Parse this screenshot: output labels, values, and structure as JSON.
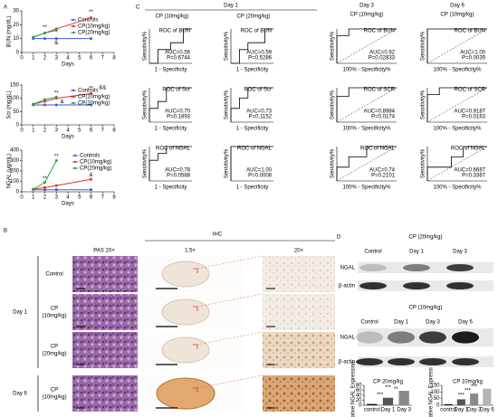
{
  "panel_labels": [
    "A",
    "B",
    "C",
    "D"
  ],
  "roc_headers": [
    "Day 1",
    "CP (10mg/kg)",
    "CP (20mg/kg)",
    "Day 3",
    "CP (10mg/kg)",
    "Day 6",
    "CP (10mg/kg)"
  ],
  "histology": {
    "headers": [
      "PAS 20×",
      "IHC",
      "1.5×",
      "20×"
    ],
    "groups": [
      {
        "label": "Day 1",
        "rows": [
          [
            "Control"
          ],
          [
            "CP",
            "(10mg/kg)"
          ],
          [
            "CP",
            "(20mg/kg)"
          ]
        ]
      },
      {
        "label": "Day 6",
        "rows": [
          [
            "CP",
            "(10mg/kg)"
          ]
        ]
      }
    ]
  },
  "blots": [
    {
      "title": "CP (20mg/kg)",
      "lanes": [
        "Control",
        "Day 1",
        "Day 3"
      ],
      "bands": [
        "NGAL",
        "β-actin"
      ]
    },
    {
      "title": "CP (10mg/kg)",
      "lanes": [
        "Control",
        "Day 1",
        "Day 3",
        "Day 6"
      ],
      "bands": [
        "NGAL",
        "β-actin"
      ]
    }
  ],
  "chart_data": [
    {
      "type": "line",
      "ylabel": "BUN (mg/dL)",
      "xlabel": "Days",
      "x": [
        1,
        2,
        3,
        6
      ],
      "xlim": [
        0,
        8
      ],
      "xticks": [
        0,
        1,
        2,
        3,
        4,
        5,
        6,
        7,
        8
      ],
      "ylim": [
        0,
        30
      ],
      "yticks": [
        0,
        10,
        20,
        30
      ],
      "legend": "right",
      "series": [
        {
          "name": "Controls",
          "color": "#3b5bdb",
          "values": [
            10,
            10,
            10,
            10
          ]
        },
        {
          "name": "CP(10mg/kg)",
          "color": "#e03131",
          "values": [
            11,
            14,
            17,
            25
          ]
        },
        {
          "name": "CP(20mg/kg)",
          "color": "#2f9e44",
          "values": [
            11,
            14,
            16,
            null
          ]
        }
      ],
      "annotations": [
        {
          "text": "**",
          "x": 2,
          "y": 18,
          "color": "#2f9e44"
        },
        {
          "text": "&",
          "x": 3,
          "y": 7,
          "color": "#000000"
        },
        {
          "text": "**",
          "x": 6,
          "y": 29,
          "color": "#e03131"
        }
      ]
    },
    {
      "type": "line",
      "ylabel": "Scr (mg/dL)",
      "xlabel": "Days",
      "x": [
        1,
        2,
        3,
        6
      ],
      "xlim": [
        0,
        8
      ],
      "xticks": [
        0,
        1,
        2,
        3,
        4,
        5,
        6,
        7,
        8
      ],
      "ylim": [
        0,
        150
      ],
      "yticks": [
        0,
        50,
        100,
        150
      ],
      "legend": "right",
      "series": [
        {
          "name": "Controls",
          "color": "#3b5bdb",
          "values": [
            75,
            75,
            75,
            75
          ]
        },
        {
          "name": "CP(10mg/kg)",
          "color": "#e03131",
          "values": [
            78,
            88,
            100,
            118
          ]
        },
        {
          "name": "CP(20mg/kg)",
          "color": "#2f9e44",
          "values": [
            78,
            95,
            105,
            null
          ]
        }
      ],
      "annotations": [
        {
          "text": "**",
          "x": 3,
          "y": 120,
          "color": "#2f9e44"
        },
        {
          "text": "&",
          "x": 3.5,
          "y": 88,
          "color": "#000000"
        },
        {
          "text": "**",
          "x": 6,
          "y": 137,
          "color": "#e03131"
        },
        {
          "text": "&&",
          "x": 7,
          "y": 140,
          "color": "#000000"
        }
      ]
    },
    {
      "type": "line",
      "ylabel": "NGAL (μg/mL)",
      "xlabel": "Days",
      "x": [
        1,
        2,
        3,
        6
      ],
      "xlim": [
        0,
        8
      ],
      "xticks": [
        0,
        1,
        2,
        3,
        4,
        5,
        6,
        7,
        8
      ],
      "ylim": [
        0,
        400
      ],
      "yticks": [
        0,
        100,
        200,
        300,
        400
      ],
      "legend": "right",
      "series": [
        {
          "name": "Controls",
          "color": "#3b5bdb",
          "values": [
            20,
            20,
            20,
            20
          ]
        },
        {
          "name": "CP(10mg/kg)",
          "color": "#e03131",
          "values": [
            25,
            40,
            60,
            120
          ]
        },
        {
          "name": "CP(20mg/kg)",
          "color": "#2f9e44",
          "values": [
            25,
            90,
            300,
            null
          ]
        }
      ],
      "annotations": [
        {
          "text": "**",
          "x": 2,
          "y": 125,
          "color": "#2f9e44"
        },
        {
          "text": "**",
          "x": 3,
          "y": 340,
          "color": "#2f9e44"
        },
        {
          "text": "&",
          "x": 6,
          "y": 160,
          "color": "#000000"
        }
      ]
    },
    {
      "type": "roc",
      "title": "ROC of BUN",
      "xlabel": "1 - Specificity",
      "ylabel": "Sensitivity%",
      "auc_label": "AUC=0.56",
      "p_label": "P=0.6744",
      "xlim": [
        0,
        1
      ],
      "ylim": [
        0,
        1
      ],
      "diagonal": false,
      "x": [
        0,
        0.2,
        0.2,
        0.5,
        0.5,
        0.8,
        0.8,
        1
      ],
      "y": [
        0,
        0,
        0.4,
        0.4,
        0.6,
        0.6,
        1,
        1
      ]
    },
    {
      "type": "roc",
      "title": "ROC of Scr",
      "xlabel": "1 - Specificity",
      "ylabel": "Sensitivity%",
      "auc_label": "AUC=0.70",
      "p_label": "P=0.1893",
      "xlim": [
        0,
        1
      ],
      "ylim": [
        0,
        1
      ],
      "diagonal": false,
      "x": [
        0,
        0,
        0.2,
        0.2,
        0.4,
        0.4,
        1
      ],
      "y": [
        0,
        0.4,
        0.4,
        0.6,
        0.6,
        1,
        1
      ]
    },
    {
      "type": "roc",
      "title": "ROC of NGAL",
      "xlabel": "1 - Specificity",
      "ylabel": "Sensitivity%",
      "auc_label": "AUC=0.78",
      "p_label": "P=0.0588",
      "xlim": [
        0,
        1
      ],
      "ylim": [
        0,
        1
      ],
      "diagonal": false,
      "x": [
        0,
        0,
        0.2,
        0.2,
        0.4,
        0.4,
        1
      ],
      "y": [
        0,
        0.6,
        0.6,
        0.8,
        0.8,
        1,
        1
      ]
    },
    {
      "type": "roc",
      "title": "ROC of BUN",
      "xlabel": "1 - Specificity",
      "ylabel": "Sensitivity%",
      "auc_label": "AUC=0.59",
      "p_label": "P=0.5286",
      "xlim": [
        0,
        1
      ],
      "ylim": [
        0,
        1
      ],
      "diagonal": false,
      "x": [
        0,
        0.2,
        0.2,
        0.4,
        0.4,
        0.8,
        0.8,
        1
      ],
      "y": [
        0,
        0,
        0.4,
        0.4,
        0.6,
        0.6,
        1,
        1
      ]
    },
    {
      "type": "roc",
      "title": "ROC of Scr",
      "xlabel": "1 - Specificity",
      "ylabel": "Sensitivity%",
      "auc_label": "AUC=0.73",
      "p_label": "P=0.1152",
      "xlim": [
        0,
        1
      ],
      "ylim": [
        0,
        1
      ],
      "diagonal": false,
      "x": [
        0,
        0,
        0.2,
        0.2,
        0.4,
        0.4,
        1
      ],
      "y": [
        0,
        0.4,
        0.4,
        0.7,
        0.7,
        1,
        1
      ]
    },
    {
      "type": "roc",
      "title": "ROC of NGAL",
      "xlabel": "1 - Specificity",
      "ylabel": "Sensitivity%",
      "auc_label": "AUC=1.00",
      "p_label": "P=0.0008",
      "xlim": [
        0,
        1
      ],
      "ylim": [
        0,
        1
      ],
      "diagonal": false,
      "x": [
        0,
        0,
        1
      ],
      "y": [
        0,
        1,
        1
      ]
    },
    {
      "type": "roc",
      "title": "ROC of BUN",
      "xlabel": "100% - Specificity%",
      "ylabel": "Sensitivity%",
      "auc_label": "AUC=0.92",
      "p_label": "P=0.02833",
      "xlim": [
        0,
        1
      ],
      "ylim": [
        0,
        1
      ],
      "diagonal": true,
      "x": [
        0,
        0,
        0.2,
        0.2,
        1
      ],
      "y": [
        0,
        0.8,
        0.8,
        1,
        1
      ]
    },
    {
      "type": "roc",
      "title": "ROC of SCR",
      "xlabel": "100% - Specificity%",
      "ylabel": "Sensitivity%",
      "auc_label": "AUC=0.8984",
      "p_label": "P=0.0174",
      "xlim": [
        0,
        1
      ],
      "ylim": [
        0,
        1
      ],
      "diagonal": true,
      "x": [
        0,
        0,
        0.2,
        0.2,
        1
      ],
      "y": [
        0,
        0.75,
        0.75,
        1,
        1
      ]
    },
    {
      "type": "roc",
      "title": "ROC of NGAL",
      "xlabel": "100% - Specificity%",
      "ylabel": "Sensitivity%",
      "auc_label": "AUC=0.74",
      "p_label": "P=0.2101",
      "xlim": [
        0,
        1
      ],
      "ylim": [
        0,
        1
      ],
      "diagonal": true,
      "x": [
        0,
        0,
        0.2,
        0.2,
        0.5,
        0.5,
        1
      ],
      "y": [
        0,
        0.4,
        0.4,
        0.7,
        0.7,
        1,
        1
      ]
    },
    {
      "type": "roc",
      "title": "ROC of BUN",
      "xlabel": "100% - Specificity%",
      "ylabel": "Sensitivity%",
      "auc_label": "AUC=1.00",
      "p_label": "P=0.0039",
      "xlim": [
        0,
        1
      ],
      "ylim": [
        0,
        1
      ],
      "diagonal": true,
      "x": [
        0,
        0,
        1
      ],
      "y": [
        0,
        1,
        1
      ]
    },
    {
      "type": "roc",
      "title": "ROC of SCR",
      "xlabel": "100% - Specificity%",
      "ylabel": "Sensitivity%",
      "auc_label": "AUC=0.9187",
      "p_label": "P=0.0163",
      "xlim": [
        0,
        1
      ],
      "ylim": [
        0,
        1
      ],
      "diagonal": true,
      "x": [
        0,
        0,
        0.2,
        0.2,
        1
      ],
      "y": [
        0,
        0.8,
        0.8,
        1,
        1
      ]
    },
    {
      "type": "roc",
      "title": "ROC of NGAL",
      "xlabel": "100% - Specificity%",
      "ylabel": "Sensitivity%",
      "auc_label": "AUC=0.6687",
      "p_label": "P=0.3367",
      "xlim": [
        0,
        1
      ],
      "ylim": [
        0,
        1
      ],
      "diagonal": true,
      "x": [
        0,
        0,
        0.4,
        0.4,
        0.6,
        0.6,
        1
      ],
      "y": [
        0,
        0.4,
        0.4,
        0.7,
        0.7,
        1,
        1
      ]
    },
    {
      "type": "bar",
      "title": "CP 20mg/kg",
      "ylabel": "Relative NGAL Expression",
      "categories": [
        "control",
        "Day 1",
        "Day 3"
      ],
      "values": [
        5,
        30,
        58
      ],
      "colors": [
        "#111111",
        "#555555",
        "#8a8a8a"
      ],
      "ylim": [
        0,
        80
      ],
      "yticks": [
        0,
        20,
        40,
        60,
        80
      ],
      "annotations": [
        {
          "text": "***",
          "x": 0.5,
          "y": 42
        },
        {
          "text": "***",
          "x": 1,
          "y": 72
        },
        {
          "text": "**",
          "x": 1.5,
          "y": 64
        }
      ]
    },
    {
      "type": "bar",
      "title": "CP 10mg/kg",
      "ylabel": "Relative NGAL Expression",
      "categories": [
        "control",
        "Day 1",
        "Day 3",
        "Day 6"
      ],
      "values": [
        8,
        45,
        88,
        125
      ],
      "colors": [
        "#111111",
        "#555555",
        "#8a8a8a",
        "#b5b5b5"
      ],
      "ylim": [
        0,
        150
      ],
      "yticks": [
        0,
        50,
        100,
        150
      ],
      "annotations": [
        {
          "text": "***",
          "x": 1,
          "y": 75
        },
        {
          "text": "***",
          "x": 1.5,
          "y": 108
        },
        {
          "text": "***",
          "x": 2,
          "y": 140
        }
      ]
    }
  ]
}
